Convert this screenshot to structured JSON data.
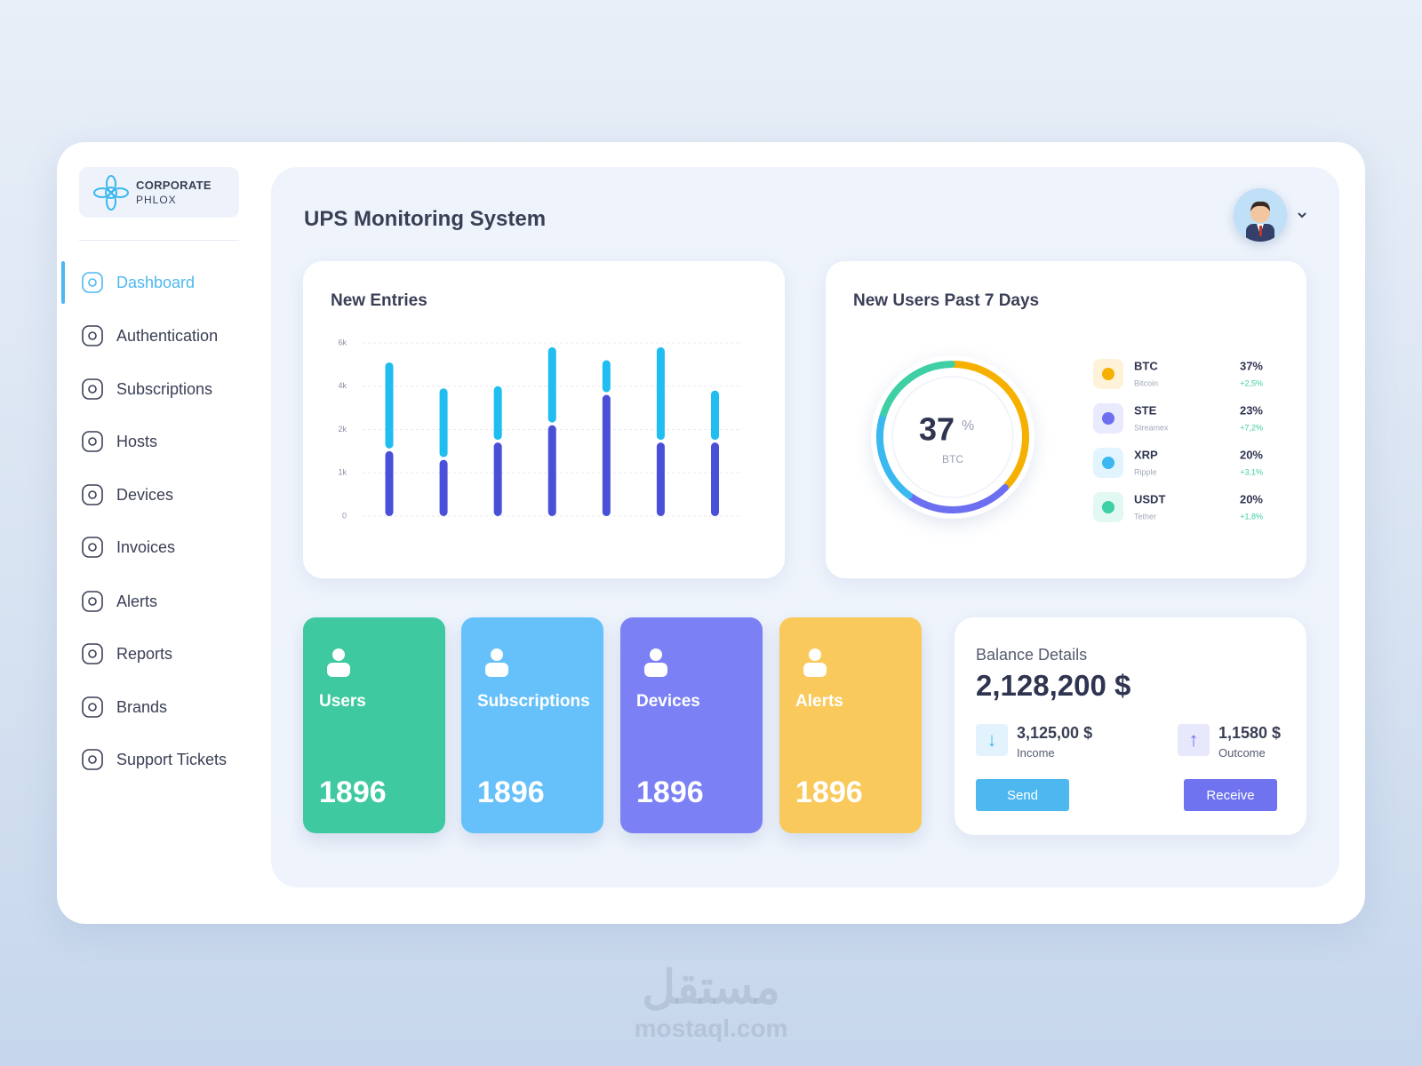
{
  "brand": {
    "line1": "CORPORATE",
    "line2": "PHLOX"
  },
  "nav": {
    "active": 0,
    "items": [
      "Dashboard",
      "Authentication",
      "Subscriptions",
      "Hosts",
      "Devices",
      "Invoices",
      "Alerts",
      "Reports",
      "Brands",
      "Support Tickets"
    ]
  },
  "header": {
    "title": "UPS Monitoring System"
  },
  "chart_data": [
    {
      "type": "bar",
      "title": "New Entries",
      "stacked": true,
      "scale": "tick-spaced",
      "grid": true,
      "ylim": [
        0,
        6000
      ],
      "yticks": [
        0,
        {
          "value": 1000,
          "label": "1k"
        },
        {
          "value": 2000,
          "label": "2k"
        },
        {
          "value": 4000,
          "label": "4k"
        },
        {
          "value": 6000,
          "label": "6k"
        }
      ],
      "series": [
        {
          "color": "#4a4fd8",
          "values": [
            1500,
            1300,
            1700,
            2200,
            3600,
            1700,
            1700
          ]
        },
        {
          "color": "#1fbdf0",
          "values": [
            3600,
            2600,
            2300,
            3600,
            1600,
            4100,
            2100
          ]
        }
      ]
    },
    {
      "type": "pie",
      "donut": true,
      "title": "New Users Past 7 Days",
      "categories": [
        "BTC",
        "STE",
        "XRP",
        "USDT"
      ],
      "subtitles": [
        "Bitcoin",
        "Streamex",
        "Ripple",
        "Tether"
      ],
      "values": [
        37,
        23,
        20,
        20
      ],
      "value_labels": [
        "37%",
        "23%",
        "20%",
        "20%"
      ],
      "changes": [
        "+2,5%",
        "+7,2%",
        "+3,1%",
        "+1,8%"
      ],
      "colors": [
        "#f5b000",
        "#6b6ff0",
        "#3bb8ef",
        "#3ecfa5"
      ],
      "center": {
        "value": "37",
        "unit": "%",
        "label": "BTC"
      }
    }
  ],
  "stats": [
    {
      "label": "Users",
      "value": 1896,
      "color": "#3fc9a0"
    },
    {
      "label": "Subscriptions",
      "value": 1896,
      "color": "#66c1fa"
    },
    {
      "label": "Devices",
      "value": 1896,
      "color": "#7b80f5"
    },
    {
      "label": "Alerts",
      "value": 1896,
      "color": "#f9c95b"
    }
  ],
  "balance": {
    "title": "Balance Details",
    "amount": "2,128,200 $",
    "income": {
      "value": "3,125,00 $",
      "label": "Income"
    },
    "outcome": {
      "value": "1,1580 $",
      "label": "Outcome"
    },
    "send": "Send",
    "receive": "Receive"
  },
  "watermark": {
    "arabic": "مستقل",
    "latin": "mostaql.com"
  }
}
